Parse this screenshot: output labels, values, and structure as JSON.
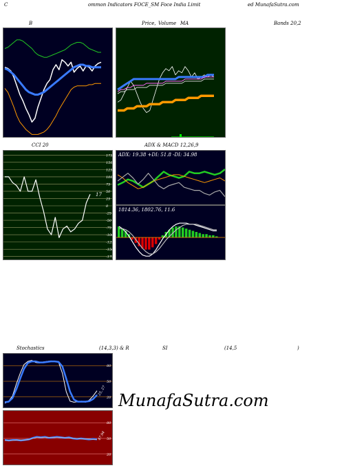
{
  "header": {
    "left": "C",
    "mid": "ommon  Indicators FOCE_SM Foce  India  Limit",
    "right": "ed MunafaSutra.com"
  },
  "titles": {
    "b": "B",
    "price": "Price,",
    "volume": "Volume",
    "ma": "MA",
    "bands": "Bands 20,2",
    "cci": "CCI 20",
    "adx": "ADX  & MACD 12,26,9",
    "stoch_a": "Stochastics",
    "stoch_b": "(14,3,3) & R",
    "stoch_c": "SI",
    "stoch_d": "(14,5",
    "stoch_e": ")"
  },
  "watermark": "MunafaSutra.com",
  "colors": {
    "dark_bg": "#000022",
    "green_bg": "#002200",
    "red_bg": "#880000",
    "blue": "#3a7bff",
    "orange": "#ff9900"
  },
  "chart_data": [
    {
      "id": "bollinger",
      "type": "line",
      "series": [
        {
          "role": "price",
          "color": "#ffffff",
          "values": [
            30,
            29,
            27,
            22,
            15,
            8,
            3,
            -3,
            -8,
            -14,
            -11,
            -2,
            5,
            12,
            17,
            20,
            28,
            32,
            28,
            36,
            34,
            31,
            34,
            26,
            29,
            31,
            27,
            31,
            30,
            27,
            31,
            33,
            34
          ]
        },
        {
          "role": "upper",
          "color": "#22cc22",
          "values": [
            45,
            46,
            48,
            50,
            52,
            52,
            51,
            49,
            47,
            45,
            42,
            40,
            39,
            38,
            38,
            39,
            40,
            41,
            42,
            43,
            44,
            46,
            48,
            49,
            50,
            50,
            49,
            47,
            45,
            44,
            43,
            42,
            42
          ]
        },
        {
          "role": "middle",
          "color": "#3a7bff",
          "values": [
            29,
            28,
            26,
            24,
            21,
            18,
            15,
            12,
            10,
            9,
            8,
            8,
            9,
            10,
            12,
            14,
            16,
            18,
            20,
            22,
            24,
            26,
            28,
            30,
            31,
            32,
            32,
            31,
            31,
            30,
            30,
            30,
            30
          ]
        },
        {
          "role": "lower",
          "color": "#ff9900",
          "values": [
            13,
            10,
            4,
            -2,
            -9,
            -14,
            -17,
            -20,
            -22,
            -24,
            -24,
            -24,
            -23,
            -22,
            -20,
            -17,
            -13,
            -9,
            -4,
            0,
            4,
            8,
            12,
            14,
            15,
            15,
            15,
            15,
            16,
            16,
            17,
            17,
            17
          ]
        }
      ],
      "ylim": [
        -26,
        58
      ]
    },
    {
      "id": "price_volume_ma",
      "type": "line",
      "series": [
        {
          "role": "price",
          "color": "#ffffff",
          "values": [
            16,
            17,
            20,
            23,
            26,
            24,
            20,
            16,
            13,
            11,
            12,
            17,
            22,
            27,
            30,
            32,
            31,
            33,
            29,
            31,
            30,
            33,
            31,
            28,
            30,
            27,
            28,
            29,
            28,
            29,
            28
          ]
        },
        {
          "role": "ma-a",
          "color": "#3a7bff",
          "values": [
            22,
            23,
            24,
            25,
            26,
            27,
            27,
            27,
            27,
            27,
            27,
            27,
            27,
            27,
            27,
            27,
            27,
            27,
            27,
            28,
            28,
            28,
            28,
            28,
            28,
            28,
            28,
            28,
            29,
            29,
            29
          ]
        },
        {
          "role": "ma-b",
          "color": "#ff66ff",
          "values": [
            21,
            22,
            22,
            23,
            23,
            24,
            24,
            24,
            24,
            25,
            25,
            25,
            25,
            25,
            25,
            26,
            26,
            26,
            26,
            26,
            26,
            27,
            27,
            27,
            27,
            27,
            27,
            28,
            28,
            28,
            28
          ]
        },
        {
          "role": "ma-c",
          "color": "#cccccc",
          "values": [
            20,
            21,
            21,
            22,
            22,
            22,
            23,
            23,
            23,
            23,
            24,
            24,
            24,
            24,
            24,
            25,
            25,
            25,
            25,
            25,
            25,
            26,
            26,
            26,
            26,
            26,
            26,
            27,
            27,
            27,
            27
          ]
        },
        {
          "role": "ma-long",
          "color": "#ff9900",
          "values": [
            12,
            12,
            12,
            13,
            13,
            13,
            14,
            14,
            14,
            14,
            15,
            15,
            15,
            15,
            16,
            16,
            16,
            16,
            17,
            17,
            17,
            17,
            18,
            18,
            18,
            18,
            19,
            19,
            19,
            19,
            19
          ]
        }
      ],
      "ylim": [
        0,
        50
      ]
    },
    {
      "id": "cci",
      "type": "line",
      "label": "17",
      "ticks": [
        175,
        150,
        125,
        100,
        75,
        50,
        25,
        0,
        -25,
        -50,
        -75,
        -100,
        -125,
        -150,
        -175
      ],
      "values": [
        100,
        100,
        80,
        70,
        50,
        100,
        50,
        50,
        90,
        30,
        -20,
        -80,
        -100,
        -40,
        -110,
        -80,
        -70,
        -90,
        -80,
        -60,
        -50,
        10,
        40
      ],
      "ylim": [
        -190,
        190
      ]
    },
    {
      "id": "adx",
      "type": "line",
      "label": "ADX: 19.38  +DI: 51.8  -DI: 34.98",
      "series": [
        {
          "role": "plus-di",
          "color": "#22cc22",
          "values": [
            35,
            38,
            42,
            40,
            36,
            32,
            36,
            40,
            46,
            52,
            48,
            46,
            44,
            46,
            52,
            50,
            50,
            52,
            50,
            48,
            50,
            55
          ]
        },
        {
          "role": "minus-di",
          "color": "#ff9900",
          "values": [
            48,
            44,
            38,
            34,
            30,
            32,
            36,
            40,
            42,
            44,
            46,
            48,
            48,
            46,
            44,
            42,
            40,
            38,
            40,
            42,
            44,
            40
          ]
        },
        {
          "role": "adx",
          "color": "#aaaaaa",
          "values": [
            40,
            45,
            50,
            44,
            36,
            42,
            50,
            42,
            34,
            30,
            34,
            36,
            38,
            32,
            30,
            28,
            28,
            24,
            22,
            26,
            28,
            20
          ]
        }
      ],
      "ylim": [
        10,
        70
      ]
    },
    {
      "id": "macd",
      "type": "bar",
      "label": "1814.36,  1802.76,  11.6",
      "histogram": [
        10,
        8,
        6,
        3,
        -2,
        -5,
        -8,
        -10,
        -11,
        -11,
        -9,
        -6,
        -2,
        2,
        5,
        7,
        9,
        10,
        10,
        9,
        8,
        7,
        6,
        5,
        4,
        3,
        3,
        2,
        2,
        1
      ],
      "series": [
        {
          "role": "macd",
          "color": "#ffffff",
          "values": [
            10,
            8,
            5,
            1,
            -4,
            -9,
            -13,
            -16,
            -17,
            -17,
            -15,
            -11,
            -6,
            -1,
            3,
            7,
            10,
            12,
            13,
            13,
            13,
            12,
            12,
            11,
            10,
            9,
            8,
            7,
            6,
            6
          ]
        },
        {
          "role": "signal",
          "color": "#bbbbbb",
          "values": [
            8,
            8,
            7,
            5,
            2,
            -2,
            -6,
            -10,
            -13,
            -15,
            -15,
            -13,
            -10,
            -6,
            -2,
            1,
            4,
            7,
            9,
            11,
            12,
            12,
            12,
            12,
            11,
            10,
            9,
            8,
            7,
            7
          ]
        }
      ],
      "ylim": [
        -20,
        20
      ]
    },
    {
      "id": "stochastics",
      "type": "line",
      "ticks": [
        80,
        50,
        20
      ],
      "label": "25, 27",
      "series": [
        {
          "role": "k",
          "color": "#ffffff",
          "values": [
            8,
            12,
            22,
            45,
            65,
            82,
            88,
            90,
            86,
            85,
            87,
            88,
            89,
            88,
            86,
            65,
            30,
            12,
            10,
            11,
            12,
            10,
            14,
            22,
            32
          ]
        },
        {
          "role": "d",
          "color": "#3a7bff",
          "values": [
            10,
            11,
            18,
            35,
            55,
            74,
            85,
            88,
            88,
            86,
            86,
            87,
            88,
            88,
            87,
            78,
            55,
            30,
            15,
            11,
            11,
            11,
            12,
            16,
            24
          ]
        }
      ],
      "ylim": [
        0,
        100
      ]
    },
    {
      "id": "rsi",
      "type": "line",
      "ticks": [
        80,
        50,
        20
      ],
      "label": "47.94",
      "series": [
        {
          "role": "rsi",
          "color": "#3a7bff",
          "values": [
            47,
            46,
            47,
            47,
            46,
            47,
            48,
            51,
            53,
            52,
            53,
            51,
            52,
            53,
            52,
            51,
            52,
            50,
            49,
            50,
            49,
            48,
            49,
            48
          ]
        },
        {
          "role": "rsi-light",
          "color": "#cccccc",
          "values": [
            46,
            46,
            46,
            47,
            47,
            47,
            48,
            50,
            52,
            52,
            52,
            52,
            52,
            52,
            52,
            51,
            51,
            50,
            50,
            49,
            49,
            49,
            48,
            48
          ]
        }
      ],
      "ylim": [
        0,
        100
      ]
    }
  ]
}
